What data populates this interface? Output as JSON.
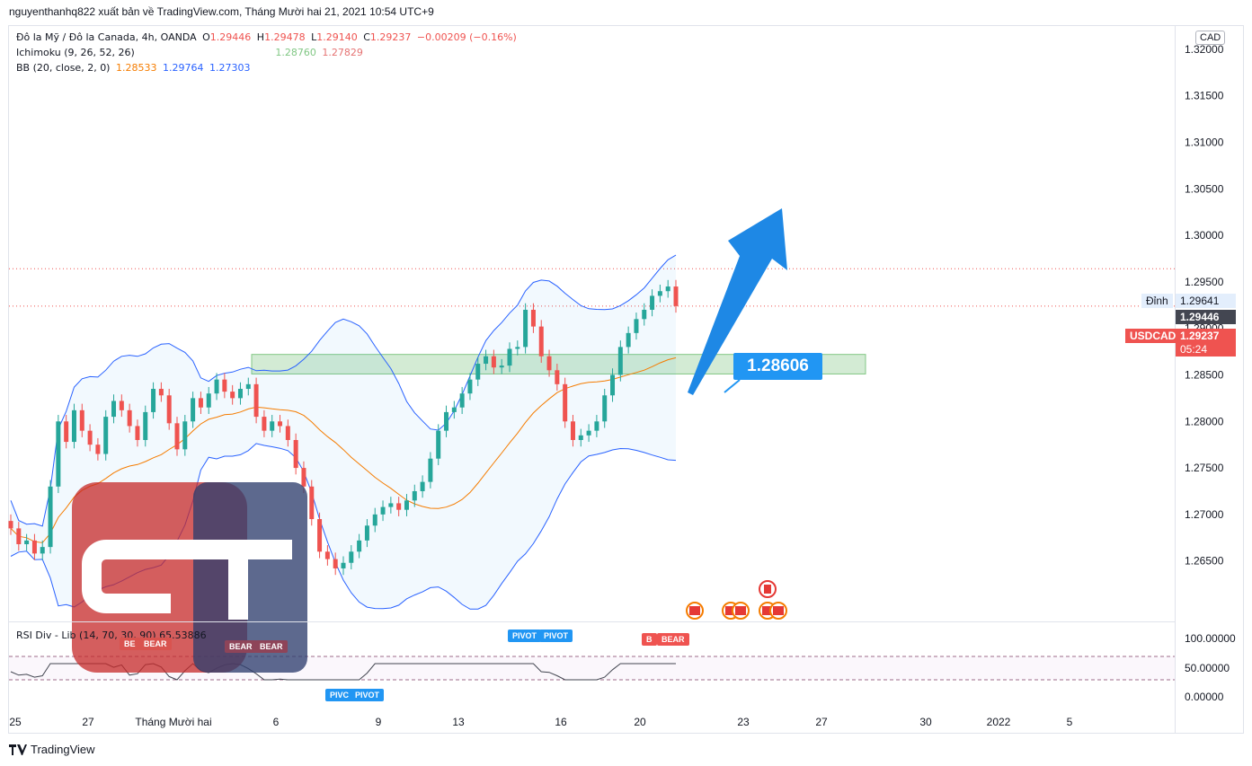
{
  "header": {
    "attribution": "nguyenthanhq822 xuất bản về TradingView.com, Tháng Mười hai 21, 2021 10:54 UTC+9"
  },
  "legend": {
    "symbol": "Đô la Mỹ / Đô la Canada, 4h, OANDA",
    "o_label": "O",
    "o": "1.29446",
    "h_label": "H",
    "h": "1.29478",
    "l_label": "L",
    "l": "1.29140",
    "c_label": "C",
    "c": "1.29237",
    "change": "−0.00209 (−0.16%)",
    "ichimoku": "Ichimoku (9, 26, 52, 26)",
    "ichimoku_a": "1.28760",
    "ichimoku_b": "1.27829",
    "bb": "BB (20, close, 2, 0)",
    "bb_basis": "1.28533",
    "bb_upper": "1.29764",
    "bb_lower": "1.27303"
  },
  "price_axis": {
    "currency": "CAD",
    "peak_label": "Đỉnh",
    "peak_value": "1.29641",
    "last_high": "1.29446",
    "symbol_tag": "USDCAD",
    "current": "1.29237",
    "countdown": "05:24"
  },
  "callout": {
    "value": "1.28606"
  },
  "rsi": {
    "legend": "RSI Div - Lib (14, 70, 30, 90) 65.53886",
    "levels": [
      "100.00000",
      "50.00000",
      "0.00000"
    ],
    "bull_labels": [
      "PIVOT",
      "PIVOT",
      "PIVC",
      "PIVOT"
    ],
    "bear_labels": [
      "BEAR",
      "BEAR",
      "BEAR",
      "BEAR",
      "BEAR"
    ],
    "short_labels": [
      "BE",
      "B"
    ]
  },
  "footer": {
    "brand": "TradingView"
  },
  "colors": {
    "bull": "#26a69a",
    "bear": "#ef5350",
    "bb": "#2962ff",
    "basis": "#f57c00",
    "arrow": "#1e88e5"
  },
  "chart_data": {
    "type": "candlestick",
    "y_ticks": [
      "1.32000",
      "1.31500",
      "1.31000",
      "1.30500",
      "1.30000",
      "1.29500",
      "1.29000",
      "1.28500",
      "1.28000",
      "1.27500",
      "1.27000",
      "1.26500"
    ],
    "ylim": [
      1.2585,
      1.3225
    ],
    "x_ticks": [
      "25",
      "27",
      "Tháng Mười hai",
      "6",
      "9",
      "13",
      "16",
      "20",
      "23",
      "27",
      "30",
      "2022",
      "5"
    ],
    "zone": [
      1.2851,
      1.2872
    ],
    "peak": 1.29641,
    "series": [
      {
        "name": "close",
        "values": [
          1.2685,
          1.2668,
          1.2672,
          1.2658,
          1.2665,
          1.273,
          1.28,
          1.2778,
          1.2812,
          1.279,
          1.2775,
          1.2765,
          1.2805,
          1.2822,
          1.2812,
          1.2795,
          1.278,
          1.281,
          1.2835,
          1.2828,
          1.2798,
          1.277,
          1.28,
          1.2825,
          1.2815,
          1.283,
          1.2845,
          1.2832,
          1.2825,
          1.2835,
          1.284,
          1.2805,
          1.279,
          1.28,
          1.2795,
          1.278,
          1.275,
          1.273,
          1.2695,
          1.266,
          1.2652,
          1.2642,
          1.2648,
          1.266,
          1.2672,
          1.2688,
          1.27,
          1.2708,
          1.2712,
          1.2705,
          1.2715,
          1.2725,
          1.2735,
          1.276,
          1.279,
          1.281,
          1.2815,
          1.283,
          1.2845,
          1.2862,
          1.287,
          1.2858,
          1.286,
          1.2878,
          1.288,
          1.292,
          1.2902,
          1.287,
          1.2855,
          1.284,
          1.28,
          1.278,
          1.2785,
          1.279,
          1.28,
          1.2828,
          1.285,
          1.288,
          1.2895,
          1.291,
          1.292,
          1.2935,
          1.294,
          1.2945,
          1.2924
        ]
      }
    ]
  }
}
